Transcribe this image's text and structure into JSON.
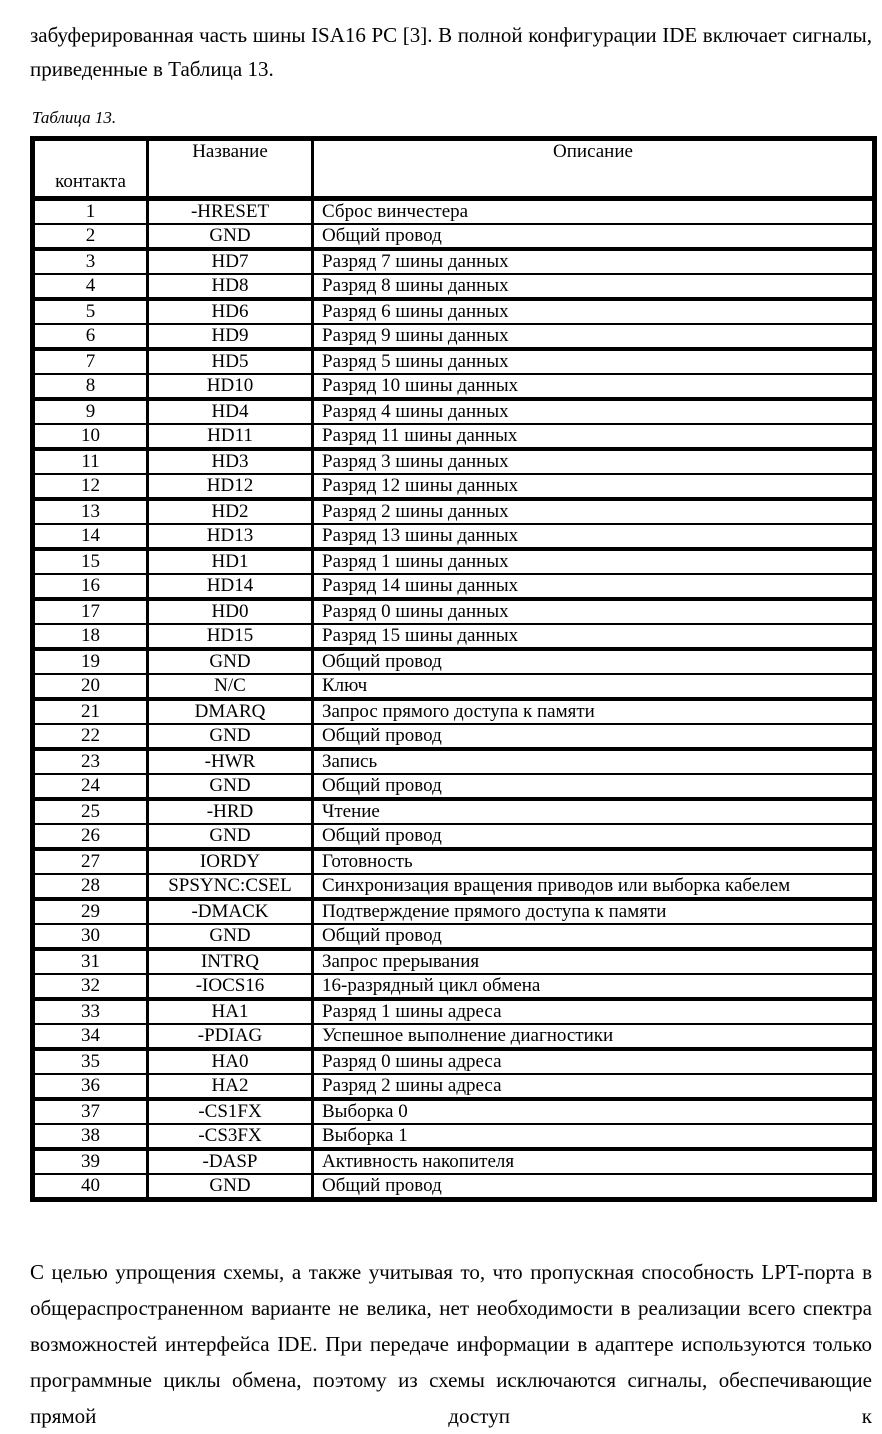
{
  "intro": {
    "text": "забуферированная часть шины ISA16 PC [3]. В полной конфигурации IDE включает сигналы, приведенные в Таблица 13."
  },
  "caption": {
    "text": "Таблица 13."
  },
  "table": {
    "headers": {
      "pin": "контакта",
      "name": "Название",
      "description": "Описание"
    },
    "rows": [
      [
        "1",
        "-HRESET",
        "Сброс винчестера"
      ],
      [
        "2",
        "GND",
        "Общий провод"
      ],
      [
        "3",
        "HD7",
        "Разряд 7 шины данных"
      ],
      [
        "4",
        "HD8",
        "Разряд 8 шины данных"
      ],
      [
        "5",
        "HD6",
        "Разряд 6 шины данных"
      ],
      [
        "6",
        "HD9",
        "Разряд 9 шины данных"
      ],
      [
        "7",
        "HD5",
        "Разряд 5 шины данных"
      ],
      [
        "8",
        "HD10",
        "Разряд 10 шины данных"
      ],
      [
        "9",
        "HD4",
        "Разряд 4 шины данных"
      ],
      [
        "10",
        "HD11",
        "Разряд 11 шины данных"
      ],
      [
        "11",
        "HD3",
        "Разряд 3 шины данных"
      ],
      [
        "12",
        "HD12",
        "Разряд 12 шины данных"
      ],
      [
        "13",
        "HD2",
        "Разряд 2 шины данных"
      ],
      [
        "14",
        "HD13",
        "Разряд 13 шины данных"
      ],
      [
        "15",
        "HD1",
        "Разряд 1 шины данных"
      ],
      [
        "16",
        "HD14",
        "Разряд 14 шины данных"
      ],
      [
        "17",
        "HD0",
        "Разряд 0 шины данных"
      ],
      [
        "18",
        "HD15",
        "Разряд 15 шины данных"
      ],
      [
        "19",
        "GND",
        "Общий провод"
      ],
      [
        "20",
        "N/C",
        "Ключ"
      ],
      [
        "21",
        "DMARQ",
        "Запрос прямого доступа к памяти"
      ],
      [
        "22",
        "GND",
        "Общий провод"
      ],
      [
        "23",
        "-HWR",
        "Запись"
      ],
      [
        "24",
        "GND",
        "Общий провод"
      ],
      [
        "25",
        "-HRD",
        "Чтение"
      ],
      [
        "26",
        "GND",
        "Общий провод"
      ],
      [
        "27",
        "IORDY",
        "Готовность"
      ],
      [
        "28",
        "SPSYNC:CSEL",
        "Синхронизация вращения приводов или выборка кабелем"
      ],
      [
        "29",
        "-DMACK",
        "Подтверждение прямого доступа к памяти"
      ],
      [
        "30",
        "GND",
        "Общий провод"
      ],
      [
        "31",
        "INTRQ",
        "Запрос прерывания"
      ],
      [
        "32",
        "-IOCS16",
        "16-разрядный цикл обмена"
      ],
      [
        "33",
        "HA1",
        "Разряд 1 шины адреса"
      ],
      [
        "34",
        "-PDIAG",
        "Успешное выполнение диагностики"
      ],
      [
        "35",
        "HA0",
        "Разряд 0 шины адреса"
      ],
      [
        "36",
        "HA2",
        "Разряд 2 шины адреса"
      ],
      [
        "37",
        "-CS1FX",
        "Выборка 0"
      ],
      [
        "38",
        "-CS3FX",
        "Выборка 1"
      ],
      [
        "39",
        "-DASP",
        "Активность накопителя"
      ],
      [
        "40",
        "GND",
        "Общий провод"
      ]
    ]
  },
  "closing": {
    "text": "С целью упрощения схемы, а также учитывая то, что пропускная способность LPT-порта в общераспространенном варианте не велика, нет необходимости в реализации всего спектра возможностей интерфейса IDE. При передаче информации в адаптере используются только программные циклы обмена, поэтому из схемы исключаются сигналы, обеспечивающие прямой доступ к"
  }
}
